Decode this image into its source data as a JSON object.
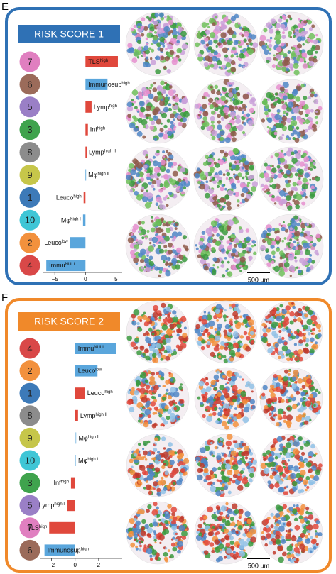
{
  "chart_data": [
    {
      "type": "bar",
      "orientation": "horizontal",
      "panel_label": "E",
      "title": "RISK SCORE 1",
      "frame_color": "#2f71b5",
      "clusters": [
        "7",
        "6",
        "5",
        "3",
        "8",
        "9",
        "1",
        "10",
        "2",
        "4"
      ],
      "cluster_colors": [
        "#e07fc0",
        "#9b6b5a",
        "#9a7fc6",
        "#3fa34d",
        "#8c8c8c",
        "#c6c64a",
        "#3d7ab8",
        "#3fc6d6",
        "#f2913d",
        "#d94848"
      ],
      "categories": [
        "TLS",
        "Immunosup",
        "Lymp",
        "Inf",
        "Lymp",
        "Mφ",
        "Leuco",
        "Mφ",
        "Leuco",
        "Immu"
      ],
      "category_superscripts": [
        "high",
        "high",
        "high I",
        "high",
        "high II",
        "high II",
        "high",
        "high I",
        "low",
        "NULL"
      ],
      "values": [
        5.3,
        3.6,
        1.0,
        0.4,
        0.2,
        0.1,
        -0.3,
        -0.4,
        -2.5,
        -6.4
      ],
      "colors": [
        "#e0483c",
        "#5aa6dc",
        "#e0483c",
        "#e0483c",
        "#e0483c",
        "#5aa6dc",
        "#e0483c",
        "#5aa6dc",
        "#5aa6dc",
        "#5aa6dc"
      ],
      "xlim": [
        -7,
        6
      ],
      "xticks": [
        {
          "value": -5,
          "label": "−5"
        },
        0,
        5
      ],
      "scale_bar_label": "500 μm"
    },
    {
      "type": "bar",
      "orientation": "horizontal",
      "panel_label": "F",
      "title": "RISK SCORE 2",
      "frame_color": "#f0892a",
      "clusters": [
        "4",
        "2",
        "1",
        "8",
        "9",
        "10",
        "3",
        "5",
        "7",
        "6"
      ],
      "cluster_colors": [
        "#d94848",
        "#f2913d",
        "#3d7ab8",
        "#8c8c8c",
        "#c6c64a",
        "#3fc6d6",
        "#3fa34d",
        "#9a7fc6",
        "#e07fc0",
        "#9b6b5a"
      ],
      "categories": [
        "Immu",
        "Leuco",
        "Leuco",
        "Lymp",
        "Mφ",
        "Mφ",
        "Inf",
        "Lymp",
        "TLS",
        "Immunosup"
      ],
      "category_superscripts": [
        "NULL",
        "low",
        "high",
        "high II",
        "high II",
        "high I",
        "high",
        "high I",
        "high",
        "high"
      ],
      "values": [
        3.5,
        1.9,
        0.85,
        0.25,
        0.1,
        0.08,
        -0.35,
        -0.7,
        -2.2,
        -2.6
      ],
      "colors": [
        "#5aa6dc",
        "#5aa6dc",
        "#e0483c",
        "#e0483c",
        "#a8d0ec",
        "#a8d0ec",
        "#e0483c",
        "#e0483c",
        "#e0483c",
        "#5aa6dc"
      ],
      "xlim": [
        -3,
        4
      ],
      "xticks": [
        {
          "value": -2,
          "label": "−2"
        },
        0,
        2
      ],
      "scale_bar_label": "500 μm"
    }
  ]
}
